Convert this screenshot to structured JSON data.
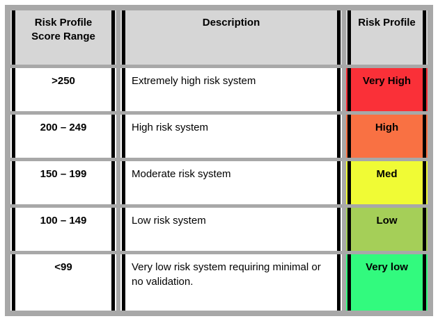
{
  "colors": {
    "frame": "#A8A8A8",
    "header_bg": "#D6D6D6",
    "row_bg": "#FFFFFF",
    "rule_bar": "#000000"
  },
  "table": {
    "headers": {
      "score_range": "Risk Profile\nScore Range",
      "description": "Description",
      "risk_profile": "Risk Profile"
    },
    "rows": [
      {
        "score": ">250",
        "description": "Extremely high risk system",
        "profile": "Very High",
        "profile_color": "#FA3038"
      },
      {
        "score": "200 – 249",
        "description": "High risk system",
        "profile": "High",
        "profile_color": "#F97143"
      },
      {
        "score": "150 – 199",
        "description": "Moderate risk system",
        "profile": "Med",
        "profile_color": "#F0FB35"
      },
      {
        "score": "100 – 149",
        "description": "Low risk system",
        "profile": "Low",
        "profile_color": "#A5CF58"
      },
      {
        "score": "<99",
        "description": "Very low risk system requiring minimal or no validation.",
        "profile": "Very low",
        "profile_color": "#32FA7E"
      }
    ]
  }
}
